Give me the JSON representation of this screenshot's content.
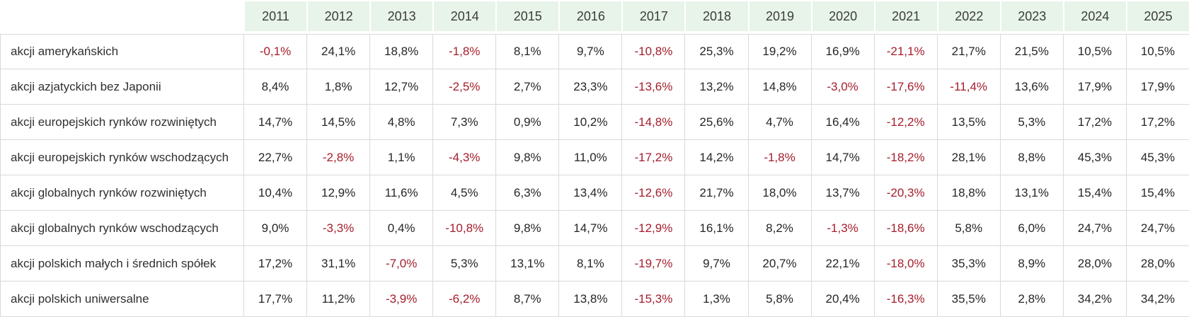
{
  "colors": {
    "header_background": "#e8f4e9",
    "header_text": "#3c3c3c",
    "body_text": "#262626",
    "negative_value": "#a41e2c",
    "grid_border": "#d9d9d9",
    "header_separator": "#ffffff"
  },
  "format": {
    "decimal_separator": ",",
    "suffix": "%",
    "decimals": 1
  },
  "table": {
    "corner_label": ""
  },
  "chart_data": {
    "type": "table",
    "title": "",
    "columns": [
      "2011",
      "2012",
      "2013",
      "2014",
      "2015",
      "2016",
      "2017",
      "2018",
      "2019",
      "2020",
      "2021",
      "2022",
      "2023",
      "2024",
      "2025"
    ],
    "rows": [
      {
        "label": "akcji amerykańskich",
        "values": [
          -0.1,
          24.1,
          18.8,
          -1.8,
          8.1,
          9.7,
          -10.8,
          25.3,
          19.2,
          16.9,
          -21.1,
          21.7,
          21.5,
          10.5,
          10.5
        ]
      },
      {
        "label": "akcji azjatyckich bez Japonii",
        "values": [
          8.4,
          1.8,
          12.7,
          -2.5,
          2.7,
          23.3,
          -13.6,
          13.2,
          14.8,
          -3.0,
          -17.6,
          -11.4,
          13.6,
          17.9,
          17.9
        ]
      },
      {
        "label": "akcji europejskich rynków rozwiniętych",
        "values": [
          14.7,
          14.5,
          4.8,
          7.3,
          0.9,
          10.2,
          -14.8,
          25.6,
          4.7,
          16.4,
          -12.2,
          13.5,
          5.3,
          17.2,
          17.2
        ]
      },
      {
        "label": "akcji europejskich rynków wschodzących",
        "values": [
          22.7,
          -2.8,
          1.1,
          -4.3,
          9.8,
          11.0,
          -17.2,
          14.2,
          -1.8,
          14.7,
          -18.2,
          28.1,
          8.8,
          45.3,
          45.3
        ]
      },
      {
        "label": "akcji globalnych rynków rozwiniętych",
        "values": [
          10.4,
          12.9,
          11.6,
          4.5,
          6.3,
          13.4,
          -12.6,
          21.7,
          18.0,
          13.7,
          -20.3,
          18.8,
          13.1,
          15.4,
          15.4
        ]
      },
      {
        "label": "akcji globalnych rynków wschodzących",
        "values": [
          9.0,
          -3.3,
          0.4,
          -10.8,
          9.8,
          14.7,
          -12.9,
          16.1,
          8.2,
          -1.3,
          -18.6,
          5.8,
          6.0,
          24.7,
          24.7
        ]
      },
      {
        "label": "akcji polskich małych i średnich spółek",
        "values": [
          17.2,
          31.1,
          -7.0,
          5.3,
          13.1,
          8.1,
          -19.7,
          9.7,
          20.7,
          22.1,
          -18.0,
          35.3,
          8.9,
          28.0,
          28.0
        ]
      },
      {
        "label": "akcji polskich uniwersalne",
        "values": [
          17.7,
          11.2,
          -3.9,
          -6.2,
          8.7,
          13.8,
          -15.3,
          1.3,
          5.8,
          20.4,
          -16.3,
          35.5,
          2.8,
          34.2,
          34.2
        ]
      }
    ]
  }
}
